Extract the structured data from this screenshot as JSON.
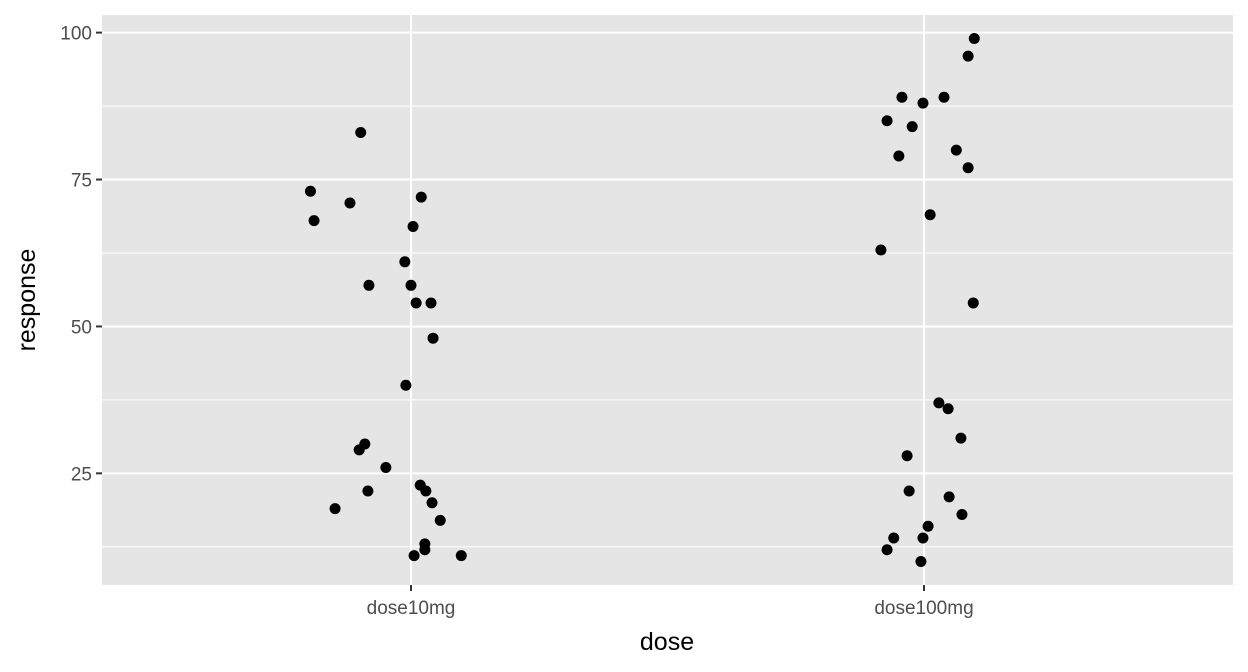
{
  "chart_data": {
    "type": "scatter",
    "xlabel": "dose",
    "ylabel": "response",
    "categories": [
      "dose10mg",
      "dose100mg"
    ],
    "ylim": [
      6,
      103
    ],
    "yticks": [
      25,
      50,
      75,
      100
    ],
    "y_minor_ticks": [
      12.5,
      37.5,
      62.5,
      87.5
    ],
    "grid": true,
    "background_color": "#e5e5e5",
    "grid_color": "#ffffff",
    "point_color": "#000000",
    "points": [
      {
        "category": "dose10mg",
        "jitter": -0.098,
        "y": 83
      },
      {
        "category": "dose10mg",
        "jitter": -0.196,
        "y": 73
      },
      {
        "category": "dose10mg",
        "jitter": 0.02,
        "y": 72
      },
      {
        "category": "dose10mg",
        "jitter": -0.119,
        "y": 71
      },
      {
        "category": "dose10mg",
        "jitter": -0.189,
        "y": 68
      },
      {
        "category": "dose10mg",
        "jitter": 0.004,
        "y": 67
      },
      {
        "category": "dose10mg",
        "jitter": -0.012,
        "y": 61
      },
      {
        "category": "dose10mg",
        "jitter": -0.082,
        "y": 57
      },
      {
        "category": "dose10mg",
        "jitter": 0.0,
        "y": 57
      },
      {
        "category": "dose10mg",
        "jitter": 0.01,
        "y": 54
      },
      {
        "category": "dose10mg",
        "jitter": 0.039,
        "y": 54
      },
      {
        "category": "dose10mg",
        "jitter": 0.043,
        "y": 48
      },
      {
        "category": "dose10mg",
        "jitter": -0.01,
        "y": 40
      },
      {
        "category": "dose10mg",
        "jitter": -0.09,
        "y": 30
      },
      {
        "category": "dose10mg",
        "jitter": -0.101,
        "y": 29
      },
      {
        "category": "dose10mg",
        "jitter": -0.049,
        "y": 26
      },
      {
        "category": "dose10mg",
        "jitter": 0.018,
        "y": 23
      },
      {
        "category": "dose10mg",
        "jitter": 0.029,
        "y": 22
      },
      {
        "category": "dose10mg",
        "jitter": -0.084,
        "y": 22
      },
      {
        "category": "dose10mg",
        "jitter": 0.041,
        "y": 20
      },
      {
        "category": "dose10mg",
        "jitter": -0.148,
        "y": 19
      },
      {
        "category": "dose10mg",
        "jitter": 0.057,
        "y": 17
      },
      {
        "category": "dose10mg",
        "jitter": 0.027,
        "y": 13
      },
      {
        "category": "dose10mg",
        "jitter": 0.027,
        "y": 12
      },
      {
        "category": "dose10mg",
        "jitter": 0.006,
        "y": 11
      },
      {
        "category": "dose10mg",
        "jitter": 0.098,
        "y": 11
      },
      {
        "category": "dose100mg",
        "jitter": 0.098,
        "y": 99
      },
      {
        "category": "dose100mg",
        "jitter": 0.086,
        "y": 96
      },
      {
        "category": "dose100mg",
        "jitter": -0.043,
        "y": 89
      },
      {
        "category": "dose100mg",
        "jitter": 0.039,
        "y": 89
      },
      {
        "category": "dose100mg",
        "jitter": -0.002,
        "y": 88
      },
      {
        "category": "dose100mg",
        "jitter": -0.072,
        "y": 85
      },
      {
        "category": "dose100mg",
        "jitter": -0.023,
        "y": 84
      },
      {
        "category": "dose100mg",
        "jitter": 0.063,
        "y": 80
      },
      {
        "category": "dose100mg",
        "jitter": -0.049,
        "y": 79
      },
      {
        "category": "dose100mg",
        "jitter": 0.086,
        "y": 77
      },
      {
        "category": "dose100mg",
        "jitter": 0.012,
        "y": 69
      },
      {
        "category": "dose100mg",
        "jitter": -0.084,
        "y": 63
      },
      {
        "category": "dose100mg",
        "jitter": 0.096,
        "y": 54
      },
      {
        "category": "dose100mg",
        "jitter": 0.029,
        "y": 37
      },
      {
        "category": "dose100mg",
        "jitter": 0.047,
        "y": 36
      },
      {
        "category": "dose100mg",
        "jitter": 0.072,
        "y": 31
      },
      {
        "category": "dose100mg",
        "jitter": -0.033,
        "y": 28
      },
      {
        "category": "dose100mg",
        "jitter": -0.029,
        "y": 22
      },
      {
        "category": "dose100mg",
        "jitter": 0.049,
        "y": 21
      },
      {
        "category": "dose100mg",
        "jitter": 0.074,
        "y": 18
      },
      {
        "category": "dose100mg",
        "jitter": 0.008,
        "y": 16
      },
      {
        "category": "dose100mg",
        "jitter": -0.002,
        "y": 14
      },
      {
        "category": "dose100mg",
        "jitter": -0.059,
        "y": 14
      },
      {
        "category": "dose100mg",
        "jitter": -0.072,
        "y": 12
      },
      {
        "category": "dose100mg",
        "jitter": -0.006,
        "y": 10
      }
    ]
  }
}
